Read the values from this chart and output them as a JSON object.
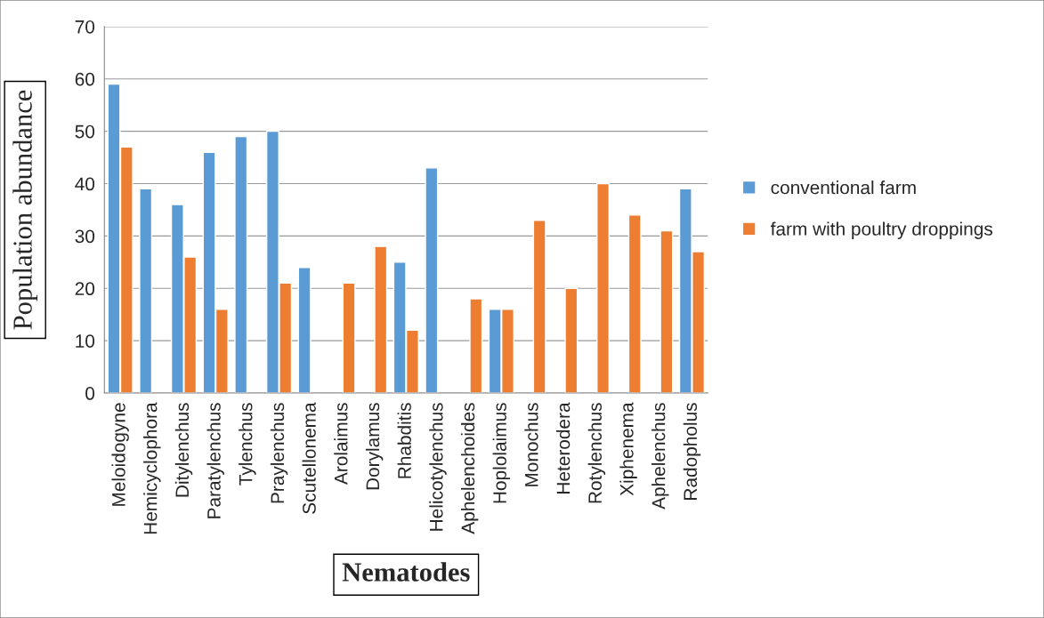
{
  "chart_data": {
    "type": "bar",
    "xlabel": "Nematodes",
    "ylabel": "Population abundance",
    "categories": [
      "Meloidogyne",
      "Hemicyclophora",
      "Ditylenchus",
      "Paratylenchus",
      "Tylenchus",
      "Praylenchus",
      "Scutellonema",
      "Arolaimus",
      "Dorylamus",
      "Rhabditis",
      "Helicotylenchus",
      "Aphelenchoides",
      "Hoplolaimus",
      "Monochus",
      "Heterodera",
      "Rotylenchus",
      "Xiphenema",
      "Aphelenchus",
      "Radopholus"
    ],
    "series": [
      {
        "name": "conventional farm",
        "color": "#5b9bd5",
        "values": [
          59,
          39,
          36,
          46,
          49,
          50,
          24,
          null,
          null,
          25,
          43,
          null,
          16,
          null,
          null,
          null,
          null,
          null,
          39
        ]
      },
      {
        "name": "farm with poultry droppings",
        "color": "#ed7d31",
        "values": [
          47,
          null,
          26,
          16,
          null,
          21,
          null,
          21,
          28,
          12,
          null,
          18,
          16,
          33,
          20,
          40,
          34,
          31,
          27
        ]
      }
    ],
    "ylim": [
      0,
      70
    ],
    "yticks": [
      0,
      10,
      20,
      30,
      40,
      50,
      60,
      70
    ],
    "grid": "y",
    "legend": "right"
  }
}
